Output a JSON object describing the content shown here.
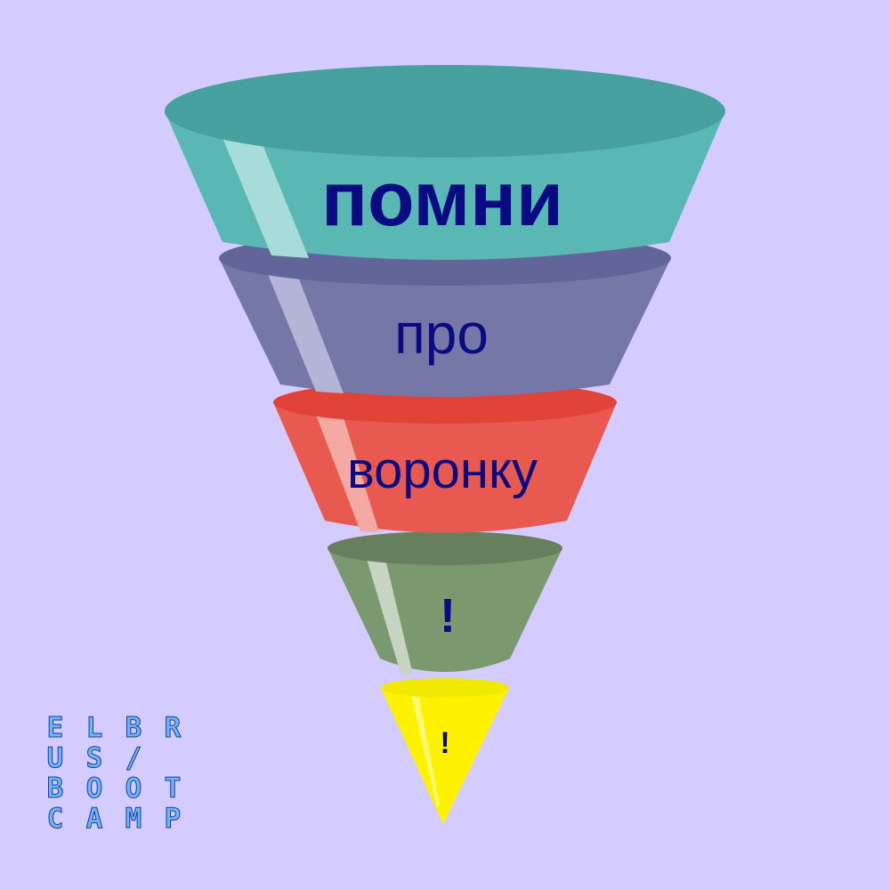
{
  "background": "#d4ccff",
  "funnel": {
    "stages": [
      {
        "label": "помни",
        "side_color": "#5ab8b4",
        "top_color": "#46a09e",
        "highlight_color": "#a8dcda"
      },
      {
        "label": "про",
        "side_color": "#7578a6",
        "top_color": "#62659a",
        "highlight_color": "#b3b4d6"
      },
      {
        "label": "воронку",
        "side_color": "#e85a50",
        "top_color": "#e04438",
        "highlight_color": "#f4a9a2"
      },
      {
        "label": "!",
        "side_color": "#7a996e",
        "top_color": "#687f5e",
        "highlight_color": "#c8d4c2"
      },
      {
        "label": "!",
        "side_color": "#fff200",
        "top_color": "#f1ea00",
        "highlight_color": "#fff97a"
      }
    ],
    "text_color": "#0a0a82"
  },
  "logo": {
    "rows": [
      "ELBR",
      "US/ ",
      "BOOT",
      "CAMP"
    ],
    "fill_color": "#6fb2ff",
    "outline_color": "#1a3f8c"
  }
}
